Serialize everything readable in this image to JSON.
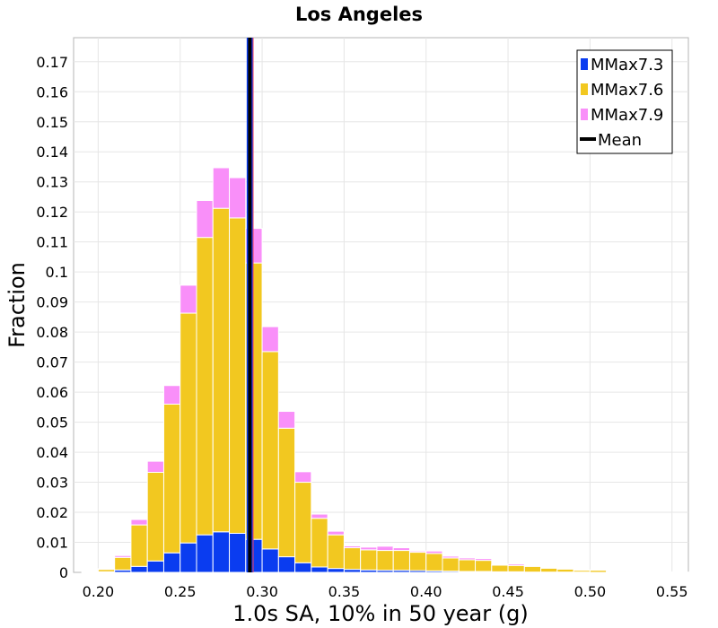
{
  "chart_data": {
    "type": "bar",
    "stacked": true,
    "title": "Los Angeles",
    "xlabel": "1.0s SA, 10% in 50 year (g)",
    "ylabel": "Fraction",
    "xlim": [
      0.185,
      0.56
    ],
    "ylim": [
      0,
      0.178
    ],
    "grid": true,
    "legend_position": "top-right",
    "x_ticks": [
      "0.20",
      "0.25",
      "0.30",
      "0.35",
      "0.40",
      "0.45",
      "0.50",
      "0.55"
    ],
    "y_ticks": [
      "0",
      "0.01",
      "0.02",
      "0.03",
      "0.04",
      "0.05",
      "0.06",
      "0.07",
      "0.08",
      "0.09",
      "0.1",
      "0.11",
      "0.12",
      "0.13",
      "0.14",
      "0.15",
      "0.16",
      "0.17"
    ],
    "x": [
      0.195,
      0.205,
      0.215,
      0.225,
      0.235,
      0.245,
      0.255,
      0.265,
      0.275,
      0.285,
      0.295,
      0.305,
      0.315,
      0.325,
      0.335,
      0.345,
      0.355,
      0.365,
      0.375,
      0.385,
      0.395,
      0.405,
      0.415,
      0.425,
      0.435,
      0.445,
      0.455,
      0.465,
      0.475,
      0.485,
      0.495,
      0.505,
      0.515,
      0.525,
      0.535,
      0.545,
      0.555
    ],
    "series": [
      {
        "name": "MMax7.3",
        "color": "#0a3cf0",
        "values": [
          0.0,
          0.0002,
          0.0008,
          0.002,
          0.0038,
          0.0065,
          0.0098,
          0.0125,
          0.0135,
          0.013,
          0.011,
          0.0078,
          0.0052,
          0.0032,
          0.0018,
          0.0013,
          0.001,
          0.0008,
          0.0007,
          0.0007,
          0.0006,
          0.0005,
          0.0004,
          0.0003,
          0.0003,
          0.0002,
          0.0002,
          0.0001,
          0.0001,
          0.0001,
          0.0001,
          0.0,
          0.0,
          0.0,
          0.0,
          0.0,
          0.0
        ]
      },
      {
        "name": "MMax7.6",
        "color": "#f2c820",
        "values": [
          0.0002,
          0.0008,
          0.0042,
          0.0138,
          0.0295,
          0.0495,
          0.0765,
          0.099,
          0.1077,
          0.105,
          0.092,
          0.0657,
          0.0428,
          0.0268,
          0.0162,
          0.0112,
          0.0072,
          0.0067,
          0.0066,
          0.0066,
          0.0061,
          0.0058,
          0.0044,
          0.0039,
          0.0037,
          0.0022,
          0.0021,
          0.0019,
          0.0013,
          0.001,
          0.0006,
          0.0007,
          0.0003,
          0.0003,
          0.0002,
          0.0002,
          0.0001
        ]
      },
      {
        "name": "MMax7.9",
        "color": "#f98ff9",
        "values": [
          0.0,
          0.0002,
          0.0006,
          0.0018,
          0.0037,
          0.0062,
          0.0093,
          0.0123,
          0.0135,
          0.0134,
          0.0115,
          0.0083,
          0.0056,
          0.0035,
          0.0014,
          0.0012,
          0.0006,
          0.0009,
          0.0014,
          0.0009,
          0.0004,
          0.0008,
          0.0006,
          0.0006,
          0.0006,
          0.0002,
          0.0005,
          0.0003,
          0.0001,
          0.0002,
          0.0001,
          0.0,
          0.0,
          0.0,
          0.0,
          0.0,
          0.0
        ]
      }
    ],
    "mean": {
      "name": "Mean",
      "value": 0.2925,
      "color": "#000000",
      "edge_color": "#0a3cf0"
    },
    "annotations": {
      "mean_edge_marker_x": 0.2945,
      "mean_edge_marker_color": "#f0405a"
    }
  }
}
